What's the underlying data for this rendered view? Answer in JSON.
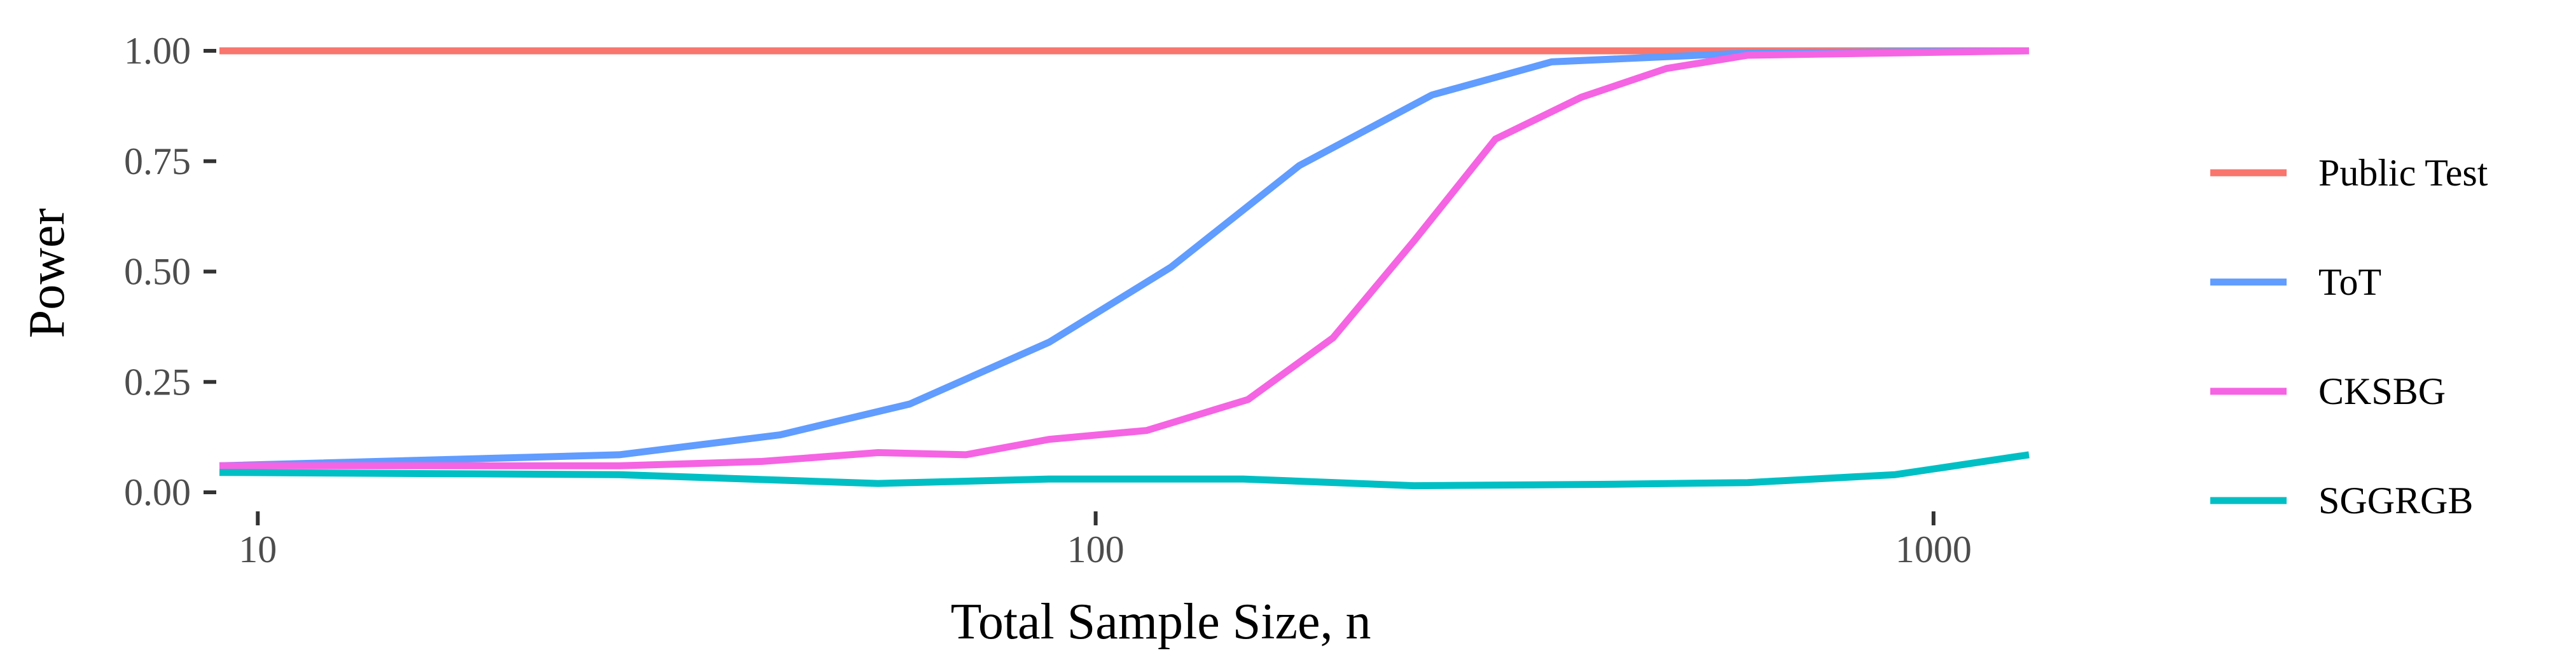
{
  "chart_data": {
    "type": "line",
    "title": "",
    "xlabel": "Total Sample Size, n",
    "ylabel": "Power",
    "x_scale": "log10",
    "xlim": [
      9,
      1300
    ],
    "ylim": [
      0,
      1
    ],
    "x_ticks": [
      {
        "value": 10,
        "label": "10"
      },
      {
        "value": 100,
        "label": "100"
      },
      {
        "value": 1000,
        "label": "1000"
      }
    ],
    "y_ticks": [
      {
        "value": 0.0,
        "label": "0.00"
      },
      {
        "value": 0.25,
        "label": "0.25"
      },
      {
        "value": 0.5,
        "label": "0.50"
      },
      {
        "value": 0.75,
        "label": "0.75"
      },
      {
        "value": 1.0,
        "label": "1.00"
      }
    ],
    "grid": false,
    "legend_position": "right",
    "series": [
      {
        "name": "Public Test",
        "color": "#F8766D",
        "points": [
          [
            9,
            1.0
          ],
          [
            1300,
            1.0
          ]
        ]
      },
      {
        "name": "ToT",
        "color": "#619CFF",
        "points": [
          [
            9,
            0.06
          ],
          [
            27,
            0.085
          ],
          [
            42,
            0.13
          ],
          [
            60,
            0.2
          ],
          [
            88,
            0.34
          ],
          [
            123,
            0.51
          ],
          [
            175,
            0.74
          ],
          [
            252,
            0.9
          ],
          [
            350,
            0.975
          ],
          [
            600,
            0.995
          ],
          [
            1300,
            1.0
          ]
        ]
      },
      {
        "name": "CKSBG",
        "color": "#F564E3",
        "points": [
          [
            9,
            0.06
          ],
          [
            27,
            0.06
          ],
          [
            40,
            0.07
          ],
          [
            55,
            0.09
          ],
          [
            70,
            0.085
          ],
          [
            88,
            0.12
          ],
          [
            115,
            0.14
          ],
          [
            152,
            0.21
          ],
          [
            192,
            0.35
          ],
          [
            240,
            0.57
          ],
          [
            300,
            0.8
          ],
          [
            380,
            0.895
          ],
          [
            480,
            0.96
          ],
          [
            600,
            0.99
          ],
          [
            1300,
            1.0
          ]
        ]
      },
      {
        "name": "SGGRGB",
        "color": "#00BFC4",
        "points": [
          [
            9,
            0.045
          ],
          [
            27,
            0.04
          ],
          [
            55,
            0.02
          ],
          [
            88,
            0.03
          ],
          [
            150,
            0.03
          ],
          [
            240,
            0.015
          ],
          [
            400,
            0.018
          ],
          [
            600,
            0.022
          ],
          [
            900,
            0.04
          ],
          [
            1300,
            0.085
          ]
        ]
      }
    ]
  }
}
